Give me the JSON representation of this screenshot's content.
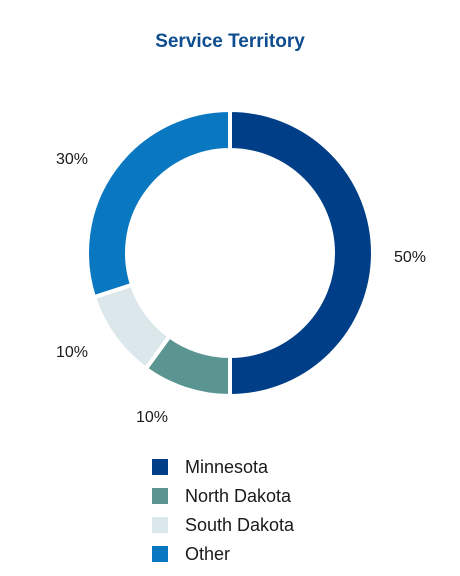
{
  "chart_data": {
    "type": "pie",
    "title": "Service Territory",
    "legend_position": "bottom",
    "slices": [
      {
        "label": "Minnesota",
        "value": 50,
        "value_label": "50%",
        "color": "#003f87"
      },
      {
        "label": "North Dakota",
        "value": 10,
        "value_label": "10%",
        "color": "#5b9592"
      },
      {
        "label": "South Dakota",
        "value": 10,
        "value_label": "10%",
        "color": "#dbe7ea"
      },
      {
        "label": "Other",
        "value": 30,
        "value_label": "30%",
        "color": "#0a78c1"
      }
    ]
  }
}
